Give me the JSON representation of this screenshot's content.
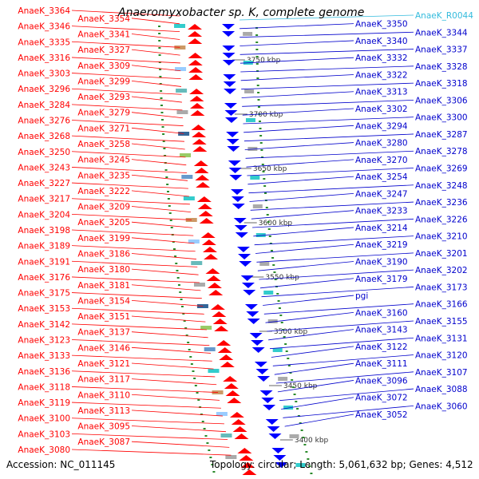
{
  "title": "Anaeromyxobacter sp. K, complete genome",
  "footer": {
    "accession": "Accession: NC_011145",
    "summary": "Topology: circular; Length: 5,061,632 bp; Genes: 4,512"
  },
  "colors": {
    "left_labels": "#ff0000",
    "right_labels": "#0000cc",
    "rna_label": "#33bbdd",
    "backbone": "#999999",
    "fwd_genes": "#ff0000",
    "rev_genes": "#0000ff"
  },
  "scale_labels": [
    "3750 kbp",
    "3700 kbp",
    "3650 kbp",
    "3600 kbp",
    "3550 kbp",
    "3500 kbp",
    "3450 kbp",
    "3400 kbp"
  ],
  "left_labels": [
    "AnaeK_3364",
    "AnaeK_3354",
    "AnaeK_3346",
    "AnaeK_3341",
    "AnaeK_3335",
    "AnaeK_3327",
    "AnaeK_3316",
    "AnaeK_3309",
    "AnaeK_3303",
    "AnaeK_3299",
    "AnaeK_3296",
    "AnaeK_3293",
    "AnaeK_3284",
    "AnaeK_3279",
    "AnaeK_3276",
    "AnaeK_3271",
    "AnaeK_3268",
    "AnaeK_3258",
    "AnaeK_3250",
    "AnaeK_3245",
    "AnaeK_3243",
    "AnaeK_3235",
    "AnaeK_3227",
    "AnaeK_3222",
    "AnaeK_3217",
    "AnaeK_3209",
    "AnaeK_3204",
    "AnaeK_3205",
    "AnaeK_3198",
    "AnaeK_3199",
    "AnaeK_3189",
    "AnaeK_3186",
    "AnaeK_3191",
    "AnaeK_3180",
    "AnaeK_3176",
    "AnaeK_3181",
    "AnaeK_3175",
    "AnaeK_3154",
    "AnaeK_3153",
    "AnaeK_3151",
    "AnaeK_3142",
    "AnaeK_3137",
    "AnaeK_3123",
    "AnaeK_3146",
    "AnaeK_3133",
    "AnaeK_3121",
    "AnaeK_3136",
    "AnaeK_3117",
    "AnaeK_3118",
    "AnaeK_3110",
    "AnaeK_3119",
    "AnaeK_3113",
    "AnaeK_3100",
    "AnaeK_3095",
    "AnaeK_3103",
    "AnaeK_3087",
    "AnaeK_3080"
  ],
  "right_labels": [
    "AnaeK_R0044",
    "AnaeK_3350",
    "AnaeK_3344",
    "AnaeK_3340",
    "AnaeK_3337",
    "AnaeK_3332",
    "AnaeK_3328",
    "AnaeK_3322",
    "AnaeK_3318",
    "AnaeK_3313",
    "AnaeK_3306",
    "AnaeK_3302",
    "AnaeK_3300",
    "AnaeK_3294",
    "AnaeK_3287",
    "AnaeK_3280",
    "AnaeK_3278",
    "AnaeK_3270",
    "AnaeK_3269",
    "AnaeK_3254",
    "AnaeK_3248",
    "AnaeK_3247",
    "AnaeK_3236",
    "AnaeK_3233",
    "AnaeK_3226",
    "AnaeK_3214",
    "AnaeK_3210",
    "AnaeK_3219",
    "AnaeK_3201",
    "AnaeK_3190",
    "AnaeK_3202",
    "AnaeK_3179",
    "AnaeK_3173",
    "pgi",
    "AnaeK_3166",
    "AnaeK_3160",
    "AnaeK_3155",
    "AnaeK_3143",
    "AnaeK_3131",
    "AnaeK_3122",
    "AnaeK_3120",
    "AnaeK_3111",
    "AnaeK_3107",
    "AnaeK_3096",
    "AnaeK_3088",
    "AnaeK_3072",
    "AnaeK_3060",
    "AnaeK_3052"
  ]
}
